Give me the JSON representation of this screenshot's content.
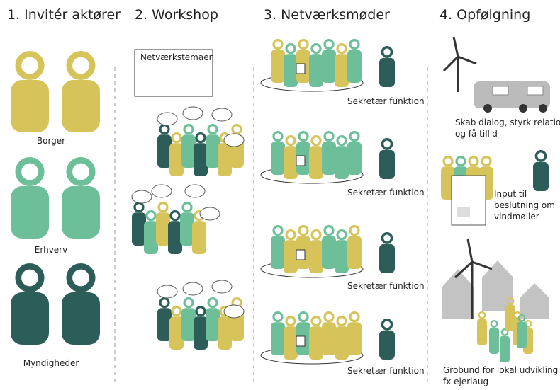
{
  "columns": [
    {
      "title": "1. Invitér aktører",
      "groups": [
        "Borger",
        "Erhverv",
        "Myndigheder"
      ]
    },
    {
      "title": "2. Workshop",
      "label": "Netværkstemaer"
    },
    {
      "title": "3. Netværksmøder",
      "labels": [
        "Sekretær funktion",
        "Sekretær funktion",
        "Sekretær funktion",
        "Sekretær funktion"
      ]
    },
    {
      "title": "4. Opfølgning",
      "notes": [
        [
          "Skab dialog, styrk relation",
          "og få tillid"
        ],
        [
          "Input til",
          "beslutning om",
          "vindmøller"
        ],
        [
          "Grobund for lokal udvikling",
          "fx ejerlaug"
        ]
      ]
    }
  ]
}
